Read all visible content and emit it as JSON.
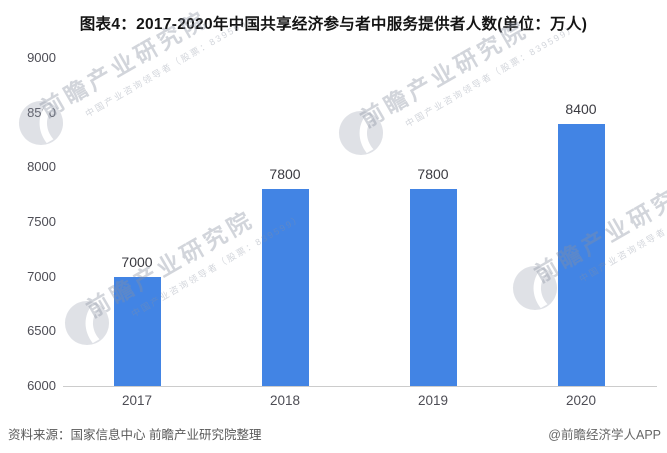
{
  "title": "图表4：2017-2020年中国共享经济参与者中服务提供者人数(单位：万人)",
  "chart_data": {
    "type": "bar",
    "title": "图表4：2017-2020年中国共享经济参与者中服务提供者人数(单位：万人)",
    "categories": [
      "2017",
      "2018",
      "2019",
      "2020"
    ],
    "values": [
      7000,
      7800,
      7800,
      8400
    ],
    "unit": "万人",
    "xlabel": "",
    "ylabel": "",
    "ylim": [
      6000,
      9000
    ],
    "yticks": [
      6000,
      6500,
      7000,
      7500,
      8000,
      8500,
      9000
    ],
    "grid": false,
    "legend_position": "none",
    "bar_color": "#4284e4"
  },
  "footer": {
    "source": "资料来源：国家信息中心 前瞻产业研究院整理",
    "credit": "@前瞻经济学人APP"
  },
  "watermark": {
    "logo": "qianzhan-logo",
    "text_large": "前瞻产业研究院",
    "text_small": "中国产业咨询领导者（股票：839599）",
    "color": "#d6d9e1"
  },
  "colors": {
    "bar": "#4284e4",
    "title_text": "#141414",
    "axis_text": "#4d4d55",
    "value_text": "#3a3a40",
    "axis_line": "#cccccc",
    "background": "#ffffff"
  }
}
